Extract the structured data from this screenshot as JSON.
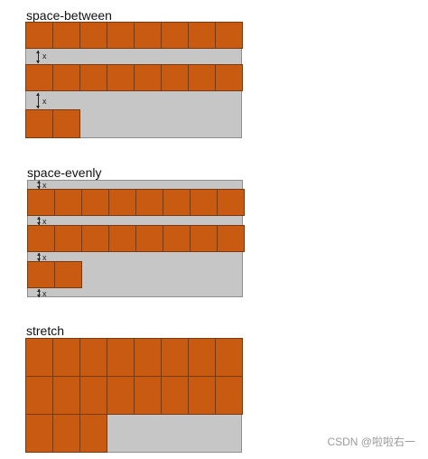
{
  "examples": [
    {
      "title": "space-between",
      "rows": [
        8,
        8,
        2
      ],
      "gap_label": "x"
    },
    {
      "title": "space-evenly",
      "rows": [
        8,
        8,
        2
      ],
      "gap_label": "x"
    },
    {
      "title": "stretch",
      "rows": [
        8,
        8,
        3
      ]
    }
  ],
  "watermark": "CSDN @啦啦右一",
  "colors": {
    "item": "#c85a12",
    "container": "#c6c6c6"
  }
}
